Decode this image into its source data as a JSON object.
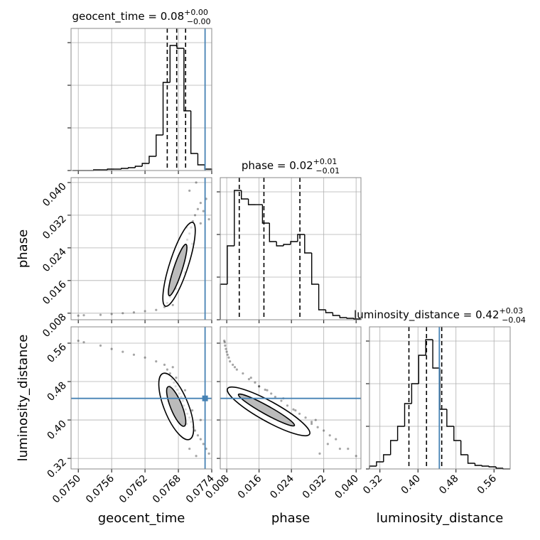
{
  "chart_data": {
    "type": "corner",
    "grid": true,
    "truth_color": "#4682b4",
    "hist_ylim": [
      0,
      1.0
    ],
    "hist_yticks": [
      0,
      0.3,
      0.6,
      0.9
    ],
    "parameters": [
      {
        "label": "geocent_time",
        "title": "geocent_time = 0.08",
        "title_upper": "+0.00",
        "title_lower": "−0.00",
        "lim": [
          0.07487,
          0.0774
        ],
        "ticks": [
          {
            "value": 0.075,
            "label": "0.0750"
          },
          0.0756,
          0.0762,
          0.0768,
          0.0774
        ],
        "truth": 0.07728,
        "quantiles": [
          0.0766,
          0.07677,
          0.07693
        ],
        "bins": [
          0.0749,
          0.075025,
          0.07515,
          0.075275,
          0.0754,
          0.075525,
          0.07565,
          0.075775,
          0.0759,
          0.076025,
          0.07615,
          0.076275,
          0.0764,
          0.076525,
          0.07665,
          0.076775,
          0.0769,
          0.077025,
          0.07715,
          0.077275,
          0.0774
        ],
        "counts": [
          0,
          0,
          0,
          0.005,
          0.005,
          0.01,
          0.01,
          0.015,
          0.02,
          0.03,
          0.05,
          0.1,
          0.25,
          0.62,
          0.88,
          0.86,
          0.42,
          0.12,
          0.04,
          0.01
        ],
        "samples": [
          0.0766,
          0.07665,
          0.07668,
          0.07672,
          0.07675,
          0.07678,
          0.07682,
          0.07685,
          0.07688,
          0.0769,
          0.07693,
          0.07696,
          0.077,
          0.07703,
          0.07706,
          0.0771,
          0.07715,
          0.0772,
          0.07725,
          0.0773,
          0.07735,
          0.0767,
          0.07655,
          0.0764,
          0.0762,
          0.076,
          0.0758,
          0.0756,
          0.0754,
          0.0751,
          0.075,
          0.0768,
          0.07676,
          0.07692,
          0.077,
          0.07712,
          0.07695,
          0.07705,
          0.07665,
          0.0772
        ]
      },
      {
        "label": "phase",
        "title": "phase = 0.02",
        "title_upper": "+0.01",
        "title_lower": "−0.01",
        "lim": [
          0.0064,
          0.0412
        ],
        "ticks": [
          0.008,
          0.016,
          0.024,
          0.032,
          {
            "value": 0.04,
            "label": "0.040"
          }
        ],
        "quantiles": [
          0.0111,
          0.0172,
          0.0261
        ],
        "bins": [
          0.0064,
          0.00814,
          0.00988,
          0.01162,
          0.01336,
          0.0151,
          0.01684,
          0.01858,
          0.02032,
          0.02206,
          0.0238,
          0.02554,
          0.02728,
          0.02902,
          0.03076,
          0.0325,
          0.03424,
          0.03598,
          0.03772,
          0.03946,
          0.0412
        ],
        "counts": [
          0.25,
          0.52,
          0.91,
          0.85,
          0.81,
          0.81,
          0.68,
          0.55,
          0.52,
          0.53,
          0.55,
          0.6,
          0.47,
          0.25,
          0.07,
          0.05,
          0.03,
          0.015,
          0.01,
          0.005
        ],
        "samples": [
          0.0105,
          0.012,
          0.0135,
          0.015,
          0.016,
          0.0175,
          0.019,
          0.02,
          0.0215,
          0.023,
          0.0245,
          0.026,
          0.0275,
          0.029,
          0.0305,
          0.032,
          0.0335,
          0.035,
          0.033,
          0.036,
          0.031,
          0.01,
          0.0095,
          0.0088,
          0.0085,
          0.0082,
          0.008,
          0.0078,
          0.0076,
          0.0075,
          0.0074,
          0.022,
          0.014,
          0.018,
          0.038,
          0.04,
          0.029,
          0.025,
          0.016,
          0.03
        ]
      },
      {
        "label": "luminosity_distance",
        "title": "luminosity_distance = 0.42",
        "title_upper": "+0.03",
        "title_lower": "−0.04",
        "lim": [
          0.298,
          0.594
        ],
        "ticks": [
          0.32,
          {
            "value": 0.4,
            "label": "0.40"
          },
          0.48,
          0.56
        ],
        "truth": 0.445,
        "quantiles": [
          0.381,
          0.418,
          0.45
        ],
        "bins": [
          0.298,
          0.3128,
          0.3276,
          0.3424,
          0.3572,
          0.372,
          0.3868,
          0.4016,
          0.4164,
          0.4312,
          0.446,
          0.4608,
          0.4756,
          0.4904,
          0.5052,
          0.52,
          0.5348,
          0.5496,
          0.5644,
          0.5792,
          0.594
        ],
        "counts": [
          0.02,
          0.05,
          0.1,
          0.2,
          0.3,
          0.46,
          0.6,
          0.8,
          0.91,
          0.71,
          0.42,
          0.3,
          0.2,
          0.1,
          0.04,
          0.025,
          0.02,
          0.015,
          0.005,
          0
        ],
        "samples": [
          0.505,
          0.497,
          0.485,
          0.478,
          0.47,
          0.463,
          0.455,
          0.448,
          0.44,
          0.43,
          0.422,
          0.413,
          0.405,
          0.396,
          0.385,
          0.378,
          0.368,
          0.36,
          0.35,
          0.34,
          0.33,
          0.51,
          0.515,
          0.522,
          0.53,
          0.536,
          0.542,
          0.548,
          0.555,
          0.562,
          0.565,
          0.445,
          0.488,
          0.462,
          0.34,
          0.325,
          0.392,
          0.42,
          0.47,
          0.4
        ]
      }
    ]
  }
}
